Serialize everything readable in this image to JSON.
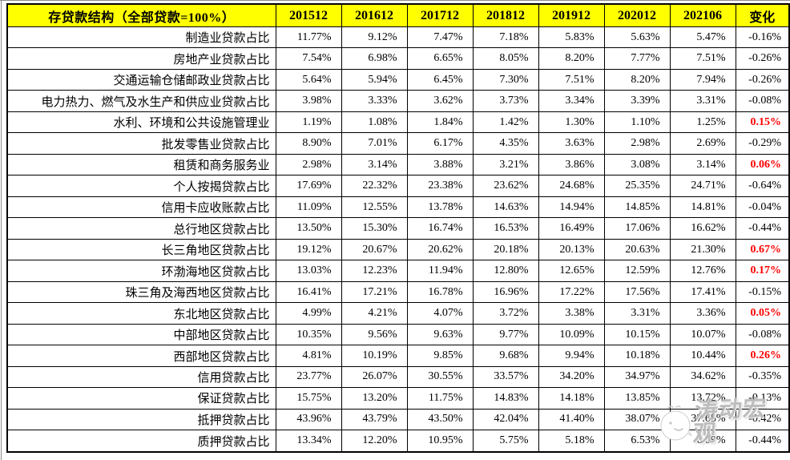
{
  "chart_data": {
    "type": "table",
    "title": "存贷款结构（全部贷款=100%）",
    "columns": [
      "201512",
      "201612",
      "201712",
      "201812",
      "201912",
      "202012",
      "202106",
      "变化"
    ],
    "rows": [
      {
        "label": "制造业贷款占比",
        "values": [
          "11.77%",
          "9.12%",
          "7.47%",
          "7.18%",
          "5.83%",
          "5.63%",
          "5.47%"
        ],
        "change": "-0.16%",
        "highlight": false
      },
      {
        "label": "房地产业贷款占比",
        "values": [
          "7.54%",
          "6.98%",
          "6.65%",
          "8.05%",
          "8.20%",
          "7.77%",
          "7.51%"
        ],
        "change": "-0.26%",
        "highlight": false
      },
      {
        "label": "交通运输仓储邮政业贷款占比",
        "values": [
          "5.64%",
          "5.94%",
          "6.45%",
          "7.30%",
          "7.51%",
          "8.20%",
          "7.94%"
        ],
        "change": "-0.26%",
        "highlight": false
      },
      {
        "label": "电力热力、燃气及水生产和供应业贷款占比",
        "values": [
          "3.98%",
          "3.33%",
          "3.62%",
          "3.73%",
          "3.34%",
          "3.39%",
          "3.31%"
        ],
        "change": "-0.08%",
        "highlight": false
      },
      {
        "label": "水利、环境和公共设施管理业",
        "values": [
          "1.19%",
          "1.08%",
          "1.84%",
          "1.42%",
          "1.30%",
          "1.10%",
          "1.25%"
        ],
        "change": "0.15%",
        "highlight": true
      },
      {
        "label": "批发零售业贷款占比",
        "values": [
          "8.90%",
          "7.01%",
          "6.17%",
          "4.35%",
          "3.63%",
          "2.98%",
          "2.69%"
        ],
        "change": "-0.29%",
        "highlight": false
      },
      {
        "label": "租赁和商务服务业",
        "values": [
          "2.98%",
          "3.14%",
          "3.88%",
          "3.21%",
          "3.86%",
          "3.08%",
          "3.14%"
        ],
        "change": "0.06%",
        "highlight": true
      },
      {
        "label": "个人按揭贷款占比",
        "values": [
          "17.69%",
          "22.32%",
          "23.38%",
          "23.62%",
          "24.68%",
          "25.35%",
          "24.71%"
        ],
        "change": "-0.64%",
        "highlight": false
      },
      {
        "label": "信用卡应收账款占比",
        "values": [
          "11.09%",
          "12.55%",
          "13.78%",
          "14.63%",
          "14.94%",
          "14.85%",
          "14.81%"
        ],
        "change": "-0.04%",
        "highlight": false
      },
      {
        "label": "总行地区贷款占比",
        "values": [
          "13.50%",
          "15.30%",
          "16.74%",
          "16.53%",
          "16.49%",
          "17.06%",
          "16.62%"
        ],
        "change": "-0.44%",
        "highlight": false
      },
      {
        "label": "长三角地区贷款占比",
        "values": [
          "19.12%",
          "20.67%",
          "20.62%",
          "20.18%",
          "20.13%",
          "20.63%",
          "21.30%"
        ],
        "change": "0.67%",
        "highlight": true
      },
      {
        "label": "环渤海地区贷款占比",
        "values": [
          "13.03%",
          "12.23%",
          "11.94%",
          "12.80%",
          "12.65%",
          "12.59%",
          "12.76%"
        ],
        "change": "0.17%",
        "highlight": true
      },
      {
        "label": "珠三角及海西地区贷款占比",
        "values": [
          "16.41%",
          "17.21%",
          "16.78%",
          "16.96%",
          "17.22%",
          "17.56%",
          "17.41%"
        ],
        "change": "-0.15%",
        "highlight": false
      },
      {
        "label": "东北地区贷款占比",
        "values": [
          "4.99%",
          "4.21%",
          "4.07%",
          "3.72%",
          "3.38%",
          "3.31%",
          "3.36%"
        ],
        "change": "0.05%",
        "highlight": true
      },
      {
        "label": "中部地区贷款占比",
        "values": [
          "10.35%",
          "9.56%",
          "9.63%",
          "9.77%",
          "10.09%",
          "10.15%",
          "10.07%"
        ],
        "change": "-0.08%",
        "highlight": false
      },
      {
        "label": "西部地区贷款占比",
        "values": [
          "4.81%",
          "10.19%",
          "9.85%",
          "9.68%",
          "9.94%",
          "10.18%",
          "10.44%"
        ],
        "change": "0.26%",
        "highlight": true
      },
      {
        "label": "信用贷款占比",
        "values": [
          "23.77%",
          "26.07%",
          "30.55%",
          "33.57%",
          "34.20%",
          "34.97%",
          "34.62%"
        ],
        "change": "-0.35%",
        "highlight": false
      },
      {
        "label": "保证贷款占比",
        "values": [
          "15.75%",
          "13.20%",
          "11.75%",
          "14.83%",
          "14.18%",
          "13.85%",
          "13.72%"
        ],
        "change": "-0.13%",
        "highlight": false
      },
      {
        "label": "抵押贷款占比",
        "values": [
          "43.96%",
          "43.79%",
          "43.50%",
          "42.04%",
          "41.40%",
          "38.07%",
          "37.65%"
        ],
        "change": "-0.42%",
        "highlight": false
      },
      {
        "label": "质押贷款占比",
        "values": [
          "13.34%",
          "12.20%",
          "10.95%",
          "5.75%",
          "5.18%",
          "6.53%",
          "6.09%"
        ],
        "change": "-0.44%",
        "highlight": false
      }
    ]
  },
  "watermark": {
    "text": "涛动宏观"
  },
  "colors": {
    "header_bg": "#FFFF00",
    "header_text": "#000000",
    "grid": "#000000",
    "value_text": "#000000",
    "positive_change": "#FF0000",
    "watermark_text": "#B2B2B2"
  }
}
